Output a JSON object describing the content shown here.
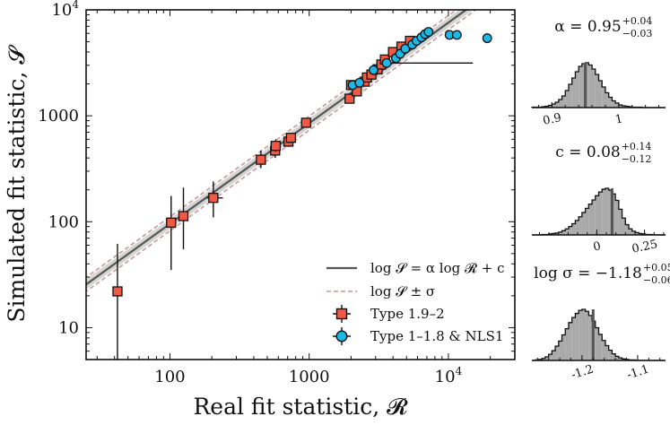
{
  "chart_data": [
    {
      "type": "scatter",
      "xlabel": "Real fit statistic, 𝓡",
      "ylabel": "Simulated fit statistic, 𝓢",
      "x_scale": "log",
      "y_scale": "log",
      "xlim": [
        25,
        30000
      ],
      "ylim": [
        5,
        10000
      ],
      "x_ticks": [
        {
          "value": 100,
          "label": "100"
        },
        {
          "value": 1000,
          "label": "1000"
        },
        {
          "value": 10000,
          "label": "10",
          "sup": "4"
        }
      ],
      "y_ticks": [
        {
          "value": 10,
          "label": "10"
        },
        {
          "value": 100,
          "label": "100"
        },
        {
          "value": 1000,
          "label": "1000"
        },
        {
          "value": 10000,
          "label": "10",
          "sup": "4"
        }
      ],
      "grid": false,
      "legend_position": "bottom-right",
      "legend": [
        {
          "label": "log 𝓢 = α log 𝓡 + c",
          "style": "solid-line",
          "color": "#555555"
        },
        {
          "label": "log 𝓢 ± σ",
          "style": "dashed-line",
          "color": "#c49a9a"
        },
        {
          "label": "Type 1.9–2",
          "style": "square-marker",
          "color": "#f05a45"
        },
        {
          "label": "Type 1–1.8 & NLS1",
          "style": "circle-marker",
          "color": "#1cb8e6"
        }
      ],
      "fit": {
        "alpha": 0.95,
        "c": 0.08,
        "sigma_log": -1.18
      },
      "series": [
        {
          "name": "Type 1.9–2",
          "marker": "square",
          "color": "#f05a45",
          "points": [
            {
              "x": 42,
              "y": 22,
              "ylo": 5,
              "yhi": 62,
              "xlo": 40,
              "xhi": 44
            },
            {
              "x": 102,
              "y": 98,
              "ylo": 35,
              "yhi": 175
            },
            {
              "x": 125,
              "y": 113,
              "ylo": 55,
              "yhi": 210
            },
            {
              "x": 205,
              "y": 168,
              "ylo": 110,
              "yhi": 240,
              "xlo": 185,
              "xhi": 240
            },
            {
              "x": 450,
              "y": 385,
              "ylo": 320,
              "yhi": 470
            },
            {
              "x": 570,
              "y": 470,
              "ylo": 400,
              "yhi": 560
            },
            {
              "x": 575,
              "y": 520,
              "ylo": 460,
              "yhi": 600
            },
            {
              "x": 710,
              "y": 570,
              "ylo": 510,
              "yhi": 640
            },
            {
              "x": 740,
              "y": 620,
              "ylo": 560,
              "yhi": 690
            },
            {
              "x": 950,
              "y": 860,
              "ylo": 800,
              "yhi": 930
            },
            {
              "x": 1950,
              "y": 1450,
              "ylo": 1320,
              "yhi": 1600
            },
            {
              "x": 2000,
              "y": 1950,
              "ylo": 1780,
              "yhi": 2150
            },
            {
              "x": 2200,
              "y": 1700,
              "ylo": 1560,
              "yhi": 1850
            },
            {
              "x": 2500,
              "y": 2100,
              "ylo": 1930,
              "yhi": 2300
            },
            {
              "x": 2600,
              "y": 2300,
              "ylo": 2120,
              "yhi": 2500
            },
            {
              "x": 2800,
              "y": 2450,
              "ylo": 2260,
              "yhi": 2650
            },
            {
              "x": 3100,
              "y": 2750,
              "ylo": 2540,
              "yhi": 2970
            },
            {
              "x": 3300,
              "y": 3050,
              "ylo": 2820,
              "yhi": 3300
            },
            {
              "x": 3500,
              "y": 3400,
              "ylo": 3150,
              "yhi": 3650
            },
            {
              "x": 4000,
              "y": 4000,
              "ylo": 3700,
              "yhi": 4300
            },
            {
              "x": 4600,
              "y": 4500,
              "ylo": 4150,
              "yhi": 4850
            },
            {
              "x": 5300,
              "y": 5100,
              "ylo": 4700,
              "yhi": 5500
            }
          ]
        },
        {
          "name": "Type 1–1.8 & NLS1",
          "marker": "circle",
          "color": "#1cb8e6",
          "points": [
            {
              "x": 2050,
              "y": 1950,
              "ylo": 1800,
              "yhi": 2100
            },
            {
              "x": 2300,
              "y": 2050,
              "ylo": 1900,
              "yhi": 2200
            },
            {
              "x": 2900,
              "y": 2700,
              "ylo": 2500,
              "yhi": 2900
            },
            {
              "x": 3600,
              "y": 3150,
              "xlo": 3450,
              "xhi": 15000,
              "ylo": 2950,
              "yhi": 3350
            },
            {
              "x": 4200,
              "y": 3500,
              "ylo": 3250,
              "yhi": 3750
            },
            {
              "x": 4500,
              "y": 3850,
              "ylo": 3600,
              "yhi": 4100
            },
            {
              "x": 4900,
              "y": 4300,
              "ylo": 4000,
              "yhi": 4600
            },
            {
              "x": 5500,
              "y": 4700,
              "ylo": 4400,
              "yhi": 5000
            },
            {
              "x": 5900,
              "y": 5100,
              "ylo": 4800,
              "yhi": 5400
            },
            {
              "x": 6400,
              "y": 5500,
              "ylo": 5150,
              "yhi": 5850
            },
            {
              "x": 6800,
              "y": 5900,
              "ylo": 5500,
              "yhi": 6300
            },
            {
              "x": 7200,
              "y": 6200,
              "ylo": 5800,
              "yhi": 6600
            },
            {
              "x": 10200,
              "y": 5800
            },
            {
              "x": 11500,
              "y": 5800
            },
            {
              "x": 19000,
              "y": 5400
            }
          ]
        }
      ]
    },
    {
      "type": "bar",
      "subtype": "histogram",
      "title": "α = 0.95",
      "title_sup": "+0.04",
      "title_sub": "−0.03",
      "xlim": [
        0.87,
        1.07
      ],
      "ticks": [
        {
          "value": 0.9,
          "label": "0.9"
        },
        {
          "value": 1.0,
          "label": "1"
        }
      ],
      "tick_rotation": -12,
      "median": 0.95,
      "bin_start": 0.87,
      "bin_width": 0.005,
      "counts": [
        1,
        1,
        1,
        2,
        3,
        5,
        8,
        12,
        18,
        26,
        38,
        52,
        66,
        80,
        92,
        98,
        100,
        95,
        86,
        74,
        60,
        46,
        33,
        23,
        15,
        10,
        6,
        4,
        3,
        2,
        1,
        1,
        1,
        0,
        0,
        0,
        0,
        0,
        0,
        0
      ]
    },
    {
      "type": "bar",
      "subtype": "histogram",
      "title": "c = 0.08",
      "title_sup": "+0.14",
      "title_sub": "−0.12",
      "xlim": [
        -0.34,
        0.36
      ],
      "ticks": [
        {
          "value": 0,
          "label": "0"
        },
        {
          "value": 0.25,
          "label": "0.25"
        }
      ],
      "tick_rotation": -12,
      "median": 0.08,
      "bin_start": -0.34,
      "bin_width": 0.0175,
      "counts": [
        0,
        0,
        0,
        1,
        1,
        2,
        3,
        4,
        6,
        9,
        13,
        18,
        24,
        31,
        39,
        48,
        57,
        66,
        75,
        84,
        92,
        98,
        100,
        96,
        88,
        74,
        55,
        36,
        22,
        13,
        8,
        5,
        3,
        2,
        1,
        1,
        0,
        0,
        0,
        0
      ]
    },
    {
      "type": "bar",
      "subtype": "histogram",
      "title": "log σ = −1.18",
      "title_sup": "+0.05",
      "title_sub": "−0.06",
      "xlim": [
        -1.29,
        -1.05
      ],
      "ticks": [
        {
          "value": -1.2,
          "label": "-1.2"
        },
        {
          "value": -1.1,
          "label": "-1.1"
        }
      ],
      "tick_rotation": -18,
      "median": -1.18,
      "bin_start": -1.29,
      "bin_width": 0.006,
      "counts": [
        0,
        1,
        2,
        4,
        7,
        12,
        19,
        28,
        38,
        50,
        62,
        74,
        84,
        92,
        98,
        100,
        96,
        88,
        77,
        64,
        51,
        39,
        29,
        20,
        13,
        8,
        5,
        3,
        2,
        1,
        1,
        0,
        0,
        0,
        0,
        0,
        0,
        0,
        0,
        0
      ]
    }
  ]
}
